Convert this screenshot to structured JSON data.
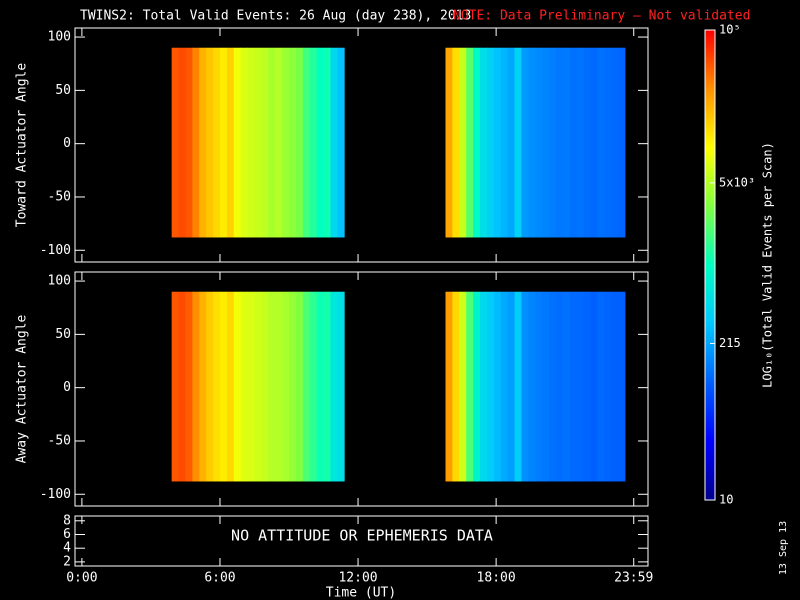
{
  "chart_data": {
    "type": "heatmap",
    "title": "TWINS2: Total Valid Events: 26 Aug (day 238), 2013",
    "note": "NOTE: Data Preliminary – Not validated",
    "xlabel": "Time (UT)",
    "xlim": [
      -0.3,
      24.6
    ],
    "xticks": [
      {
        "value": 0,
        "label": "0:00"
      },
      {
        "value": 6,
        "label": "6:00"
      },
      {
        "value": 12,
        "label": "12:00"
      },
      {
        "value": 18,
        "label": "18:00"
      },
      {
        "value": 23.98,
        "label": "23:59"
      }
    ],
    "colorscale": [
      "#00008c",
      "#0000ff",
      "#0060ff",
      "#00c8ff",
      "#00ffc0",
      "#80ff40",
      "#ffff00",
      "#ff9000",
      "#ff0000"
    ],
    "colorbar": {
      "label": "LOG₁₀(Total Valid Events per Scan)",
      "log": true,
      "zlim": [
        10,
        100000
      ],
      "ticks": [
        10,
        215,
        {
          "value": 5000,
          "label": "5x10³"
        },
        {
          "value": 100000,
          "label": "10⁵"
        }
      ]
    },
    "panels": [
      {
        "ylabel": "Toward Actuator Angle",
        "ylim": [
          -111,
          108.5
        ],
        "yticks": [
          -100,
          -50,
          0,
          50,
          100
        ],
        "angle_range": [
          -88,
          90
        ],
        "series": [
          {
            "bins": [
              3.9,
              4.2,
              4.5,
              4.8,
              5.1,
              5.4,
              5.7,
              6.0,
              6.3,
              6.6,
              6.9,
              7.2,
              7.5,
              7.8,
              8.1,
              8.4,
              8.7,
              9.0,
              9.3,
              9.6,
              9.9,
              10.2,
              10.5,
              10.8,
              11.1,
              11.4
            ],
            "values": [
              50000,
              55000,
              50000,
              35000,
              22000,
              18000,
              15000,
              12000,
              16000,
              9000,
              7000,
              6500,
              6000,
              5500,
              4500,
              5000,
              4000,
              3500,
              3000,
              1800,
              1400,
              1000,
              1100,
              450,
              300
            ]
          },
          {
            "bins": [
              15.8,
              16.1,
              16.4,
              16.7,
              17.0,
              17.3,
              17.6,
              17.9,
              18.2,
              18.5,
              18.8,
              19.1,
              19.4,
              19.7,
              20.0,
              20.3,
              20.6,
              20.9,
              21.2,
              21.5,
              21.8,
              22.1,
              22.4,
              22.7,
              23.0,
              23.3,
              23.6
            ],
            "values": [
              25000,
              14000,
              6000,
              2200,
              900,
              500,
              380,
              300,
              260,
              220,
              380,
              190,
              170,
              160,
              150,
              140,
              130,
              135,
              120,
              125,
              115,
              110,
              120,
              115,
              110,
              105
            ]
          }
        ]
      },
      {
        "ylabel": "Away Actuator Angle",
        "ylim": [
          -111,
          108.5
        ],
        "yticks": [
          -100,
          -50,
          0,
          50,
          100
        ],
        "angle_range": [
          -88,
          90
        ],
        "series": [
          {
            "bins": [
              3.9,
              4.2,
              4.5,
              4.8,
              5.1,
              5.4,
              5.7,
              6.0,
              6.3,
              6.6,
              6.9,
              7.2,
              7.5,
              7.8,
              8.1,
              8.4,
              8.7,
              9.0,
              9.3,
              9.6,
              9.9,
              10.2,
              10.5,
              10.8,
              11.1,
              11.4
            ],
            "values": [
              50000,
              55000,
              48000,
              32000,
              22000,
              17000,
              14000,
              12000,
              15000,
              9000,
              7500,
              7000,
              6500,
              6000,
              5000,
              5000,
              4500,
              3800,
              3200,
              2000,
              1500,
              1100,
              1200,
              600,
              500
            ]
          },
          {
            "bins": [
              15.8,
              16.1,
              16.4,
              16.7,
              17.0,
              17.3,
              17.6,
              17.9,
              18.2,
              18.5,
              18.8,
              19.1,
              19.4,
              19.7,
              20.0,
              20.3,
              20.6,
              20.9,
              21.2,
              21.5,
              21.8,
              22.1,
              22.4,
              22.7,
              23.0,
              23.3,
              23.6
            ],
            "values": [
              28000,
              15000,
              6500,
              2000,
              800,
              450,
              350,
              280,
              230,
              200,
              350,
              170,
              150,
              140,
              130,
              120,
              115,
              120,
              110,
              110,
              105,
              100,
              110,
              105,
              100,
              100
            ]
          }
        ]
      }
    ],
    "info_panel": {
      "ylim": [
        1.4,
        8.7
      ],
      "yticks": [
        2,
        4,
        6,
        8
      ],
      "text": "NO ATTITUDE OR EPHEMERIS DATA"
    },
    "date_stamp": "13 Sep 13"
  }
}
